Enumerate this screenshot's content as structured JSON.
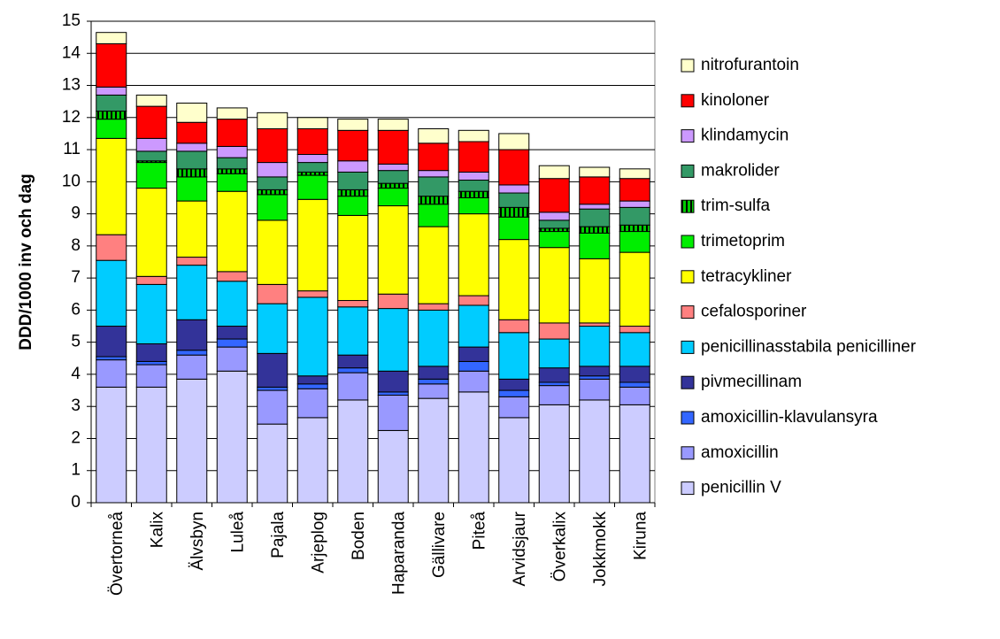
{
  "chart_data": {
    "type": "stacked-bar",
    "y_label": "DDD/1000 inv och dag",
    "categories": [
      "Övertorneå",
      "Kalix",
      "Älvsbyn",
      "Luleå",
      "Pajala",
      "Arjeplog",
      "Boden",
      "Haparanda",
      "Gällivare",
      "Piteå",
      "Arvidsjaur",
      "Överkalix",
      "Jokkmokk",
      "Kiruna"
    ],
    "series": [
      {
        "name": "penicillin V",
        "color": "#ccccff",
        "values": [
          3.6,
          3.6,
          3.85,
          4.1,
          2.45,
          2.65,
          3.2,
          2.25,
          3.25,
          3.45,
          2.65,
          3.05,
          3.2,
          3.05
        ]
      },
      {
        "name": "amoxicillin",
        "color": "#9999ff",
        "values": [
          0.85,
          0.7,
          0.75,
          0.75,
          1.05,
          0.9,
          0.85,
          1.1,
          0.45,
          0.65,
          0.65,
          0.6,
          0.65,
          0.55
        ]
      },
      {
        "name": "amoxicillin-klavulansyra",
        "color": "#3366ff",
        "values": [
          0.1,
          0.1,
          0.15,
          0.25,
          0.1,
          0.15,
          0.15,
          0.1,
          0.15,
          0.3,
          0.2,
          0.1,
          0.1,
          0.15
        ]
      },
      {
        "name": "pivmecillinam",
        "color": "#333399",
        "values": [
          0.95,
          0.55,
          0.95,
          0.4,
          1.05,
          0.25,
          0.4,
          0.65,
          0.4,
          0.45,
          0.35,
          0.45,
          0.3,
          0.5
        ]
      },
      {
        "name": "penicillinasstabila penicilliner",
        "color": "#00ccff",
        "values": [
          2.05,
          1.85,
          1.7,
          1.4,
          1.55,
          2.45,
          1.5,
          1.95,
          1.75,
          1.3,
          1.45,
          0.9,
          1.25,
          1.05
        ]
      },
      {
        "name": "cefalosporiner",
        "color": "#ff8080",
        "values": [
          0.8,
          0.25,
          0.25,
          0.3,
          0.6,
          0.2,
          0.2,
          0.45,
          0.2,
          0.3,
          0.4,
          0.5,
          0.1,
          0.2
        ]
      },
      {
        "name": "tetracykliner",
        "color": "#ffff00",
        "values": [
          3.0,
          2.75,
          1.75,
          2.5,
          2.0,
          2.85,
          2.65,
          2.75,
          2.4,
          2.55,
          2.5,
          2.35,
          2.0,
          2.3
        ]
      },
      {
        "name": "trimetoprim",
        "color": "#00ee00",
        "values": [
          0.6,
          0.8,
          0.75,
          0.55,
          0.8,
          0.75,
          0.6,
          0.55,
          0.7,
          0.5,
          0.7,
          0.5,
          0.8,
          0.65
        ]
      },
      {
        "name": "trim-sulfa",
        "color": "#00cc00",
        "pattern": "stripes",
        "values": [
          0.25,
          0.05,
          0.25,
          0.15,
          0.15,
          0.1,
          0.2,
          0.15,
          0.25,
          0.2,
          0.3,
          0.1,
          0.2,
          0.2
        ]
      },
      {
        "name": "makrolider",
        "color": "#339966",
        "values": [
          0.5,
          0.3,
          0.55,
          0.35,
          0.4,
          0.3,
          0.55,
          0.4,
          0.6,
          0.35,
          0.45,
          0.25,
          0.55,
          0.55
        ]
      },
      {
        "name": "klindamycin",
        "color": "#cc99ff",
        "values": [
          0.25,
          0.4,
          0.25,
          0.35,
          0.45,
          0.25,
          0.35,
          0.2,
          0.2,
          0.25,
          0.25,
          0.25,
          0.15,
          0.2
        ]
      },
      {
        "name": "kinoloner",
        "color": "#ff0000",
        "values": [
          1.35,
          1.0,
          0.65,
          0.85,
          1.05,
          0.8,
          0.95,
          1.05,
          0.85,
          0.95,
          1.1,
          1.05,
          0.85,
          0.7
        ]
      },
      {
        "name": "nitrofurantoin",
        "color": "#ffffcc",
        "values": [
          0.35,
          0.35,
          0.6,
          0.35,
          0.5,
          0.35,
          0.35,
          0.35,
          0.45,
          0.35,
          0.5,
          0.4,
          0.3,
          0.3
        ]
      }
    ],
    "ylim": [
      0,
      15
    ],
    "yticks": [
      0,
      1,
      2,
      3,
      4,
      5,
      6,
      7,
      8,
      9,
      10,
      11,
      12,
      13,
      14,
      15
    ],
    "grid": true,
    "legend": "right"
  }
}
